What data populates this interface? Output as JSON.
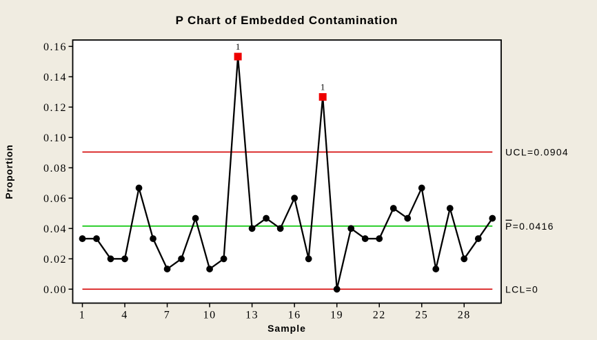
{
  "chart_data": {
    "type": "line",
    "chart_kind": "p-control-chart",
    "title": "P Chart of Embedded Contamination",
    "xlabel": "Sample",
    "ylabel": "Proportion",
    "x": [
      1,
      2,
      3,
      4,
      5,
      6,
      7,
      8,
      9,
      10,
      11,
      12,
      13,
      14,
      15,
      16,
      17,
      18,
      19,
      20,
      21,
      22,
      23,
      24,
      25,
      26,
      27,
      28,
      29,
      30
    ],
    "values": [
      0.0333,
      0.0333,
      0.02,
      0.02,
      0.0667,
      0.0333,
      0.0133,
      0.02,
      0.0467,
      0.0133,
      0.02,
      0.1533,
      0.04,
      0.0467,
      0.04,
      0.06,
      0.02,
      0.1267,
      0.0,
      0.04,
      0.0333,
      0.0333,
      0.0533,
      0.0467,
      0.0667,
      0.0133,
      0.0533,
      0.02,
      0.0333,
      0.0467
    ],
    "out_of_control": {
      "samples": [
        12,
        18
      ],
      "flag_label": "1"
    },
    "limits": {
      "ucl": 0.0904,
      "center": 0.0416,
      "lcl": 0
    },
    "limit_labels": {
      "ucl": "UCL=0.0904",
      "center_prefix": "P",
      "center_rest": "=0.0416",
      "lcl": "LCL=0"
    },
    "y_ticks": [
      "0.00",
      "0.02",
      "0.04",
      "0.06",
      "0.08",
      "0.10",
      "0.12",
      "0.14",
      "0.16"
    ],
    "x_ticks": [
      1,
      4,
      7,
      10,
      13,
      16,
      19,
      22,
      25,
      28
    ],
    "ylim": [
      0,
      0.16
    ],
    "grid": false,
    "legend": "none"
  },
  "colors": {
    "background": "#F0ECE1",
    "plot_bg": "#FFFFFF",
    "frame": "#000000",
    "limit_line": "#D40000",
    "center_line": "#00C400",
    "series_line": "#000000",
    "marker": "#000000",
    "out_of_control_marker": "#EE0000",
    "flag_text": "#8B0000",
    "text": "#000000"
  }
}
